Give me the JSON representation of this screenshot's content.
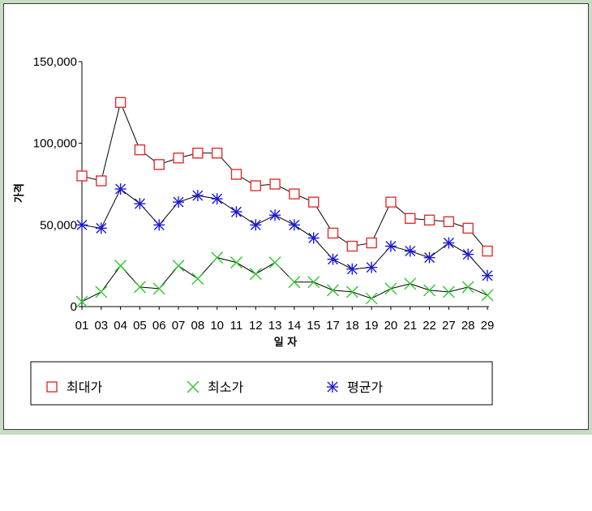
{
  "colors": {
    "max": "#e03030",
    "min": "#2ec82e",
    "avg": "#1a1ad8",
    "line": "#000000",
    "frame": "#c6dcc3"
  },
  "chart_data": {
    "type": "line",
    "title": "",
    "xlabel": "일 자",
    "ylabel": "가격",
    "ylim": [
      0,
      150000
    ],
    "yticks": [
      "0",
      "50,000",
      "100,000",
      "150,000"
    ],
    "ytick_values": [
      0,
      50000,
      100000,
      150000
    ],
    "categories": [
      "01",
      "03",
      "04",
      "05",
      "06",
      "07",
      "08",
      "10",
      "11",
      "12",
      "13",
      "14",
      "15",
      "17",
      "18",
      "19",
      "20",
      "21",
      "22",
      "27",
      "28",
      "29"
    ],
    "legend_position": "bottom",
    "series": [
      {
        "name": "최대가",
        "key": "max",
        "marker": "square",
        "values": [
          80000,
          77000,
          125000,
          96000,
          87000,
          91000,
          94000,
          94000,
          81000,
          74000,
          75000,
          69000,
          64000,
          45000,
          37000,
          39000,
          64000,
          54000,
          53000,
          52000,
          48000,
          34000
        ]
      },
      {
        "name": "최소가",
        "key": "min",
        "marker": "x",
        "values": [
          3000,
          9000,
          25000,
          12000,
          11000,
          25000,
          17000,
          30000,
          27000,
          20000,
          27000,
          15000,
          15000,
          10000,
          9000,
          5000,
          11000,
          14000,
          10000,
          9000,
          12000,
          7000
        ]
      },
      {
        "name": "평균가",
        "key": "avg",
        "marker": "asterisk",
        "values": [
          50000,
          48000,
          72000,
          63000,
          50000,
          64000,
          68000,
          66000,
          58000,
          50000,
          56000,
          50000,
          42000,
          29000,
          23000,
          24000,
          37000,
          34000,
          30000,
          39000,
          32000,
          19000
        ]
      }
    ]
  }
}
